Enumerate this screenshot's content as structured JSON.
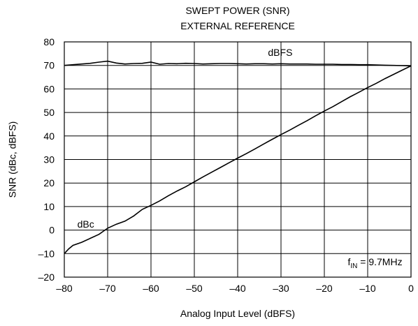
{
  "chart_data": {
    "type": "line",
    "title_lines": [
      "SWEPT POWER (SNR)",
      "EXTERNAL REFERENCE"
    ],
    "xlabel": "Analog Input Level (dBFS)",
    "ylabel": "SNR (dBc, dBFS)",
    "xlim": [
      -80,
      0
    ],
    "ylim": [
      -20,
      80
    ],
    "x_ticks": [
      -80,
      -70,
      -60,
      -50,
      -40,
      -30,
      -20,
      -10,
      0
    ],
    "x_tick_labels": [
      "–80",
      "–70",
      "–60",
      "–50",
      "–40",
      "–30",
      "–20",
      "–10",
      "0"
    ],
    "y_ticks": [
      80,
      70,
      60,
      50,
      40,
      30,
      20,
      10,
      0,
      -10,
      -20
    ],
    "y_tick_labels": [
      "80",
      "70",
      "60",
      "50",
      "40",
      "30",
      "20",
      "10",
      "0",
      "–10",
      "–20"
    ],
    "grid": true,
    "annotation": {
      "main": "f",
      "sub": "IN",
      "rest": " = 9.7MHz",
      "x": -2,
      "y": -15
    },
    "series": [
      {
        "name": "dBFS",
        "label_at": {
          "x": -33,
          "y": 74
        },
        "x": [
          -80,
          -78,
          -76,
          -74,
          -72,
          -70,
          -68,
          -66,
          -64,
          -62,
          -60,
          -58,
          -56,
          -54,
          -52,
          -50,
          -48,
          -46,
          -44,
          -42,
          -40,
          -38,
          -36,
          -34,
          -32,
          -30,
          -28,
          -26,
          -24,
          -22,
          -20,
          -18,
          -16,
          -14,
          -12,
          -10,
          -8,
          -6,
          -4,
          -2,
          0
        ],
        "values": [
          70.0,
          70.3,
          70.6,
          70.9,
          71.4,
          71.8,
          71.0,
          70.6,
          70.8,
          70.9,
          71.4,
          70.5,
          70.8,
          70.7,
          70.9,
          70.8,
          70.6,
          70.7,
          70.8,
          70.8,
          70.7,
          70.6,
          70.7,
          70.7,
          70.6,
          70.7,
          70.6,
          70.6,
          70.6,
          70.5,
          70.5,
          70.5,
          70.4,
          70.4,
          70.3,
          70.3,
          70.2,
          70.1,
          70.0,
          69.9,
          69.8
        ]
      },
      {
        "name": "dBc",
        "label_at": {
          "x": -77,
          "y": 1
        },
        "x": [
          -80,
          -79,
          -78,
          -76,
          -74,
          -72,
          -70,
          -68,
          -66,
          -64,
          -62,
          -60,
          -58,
          -56,
          -54,
          -52,
          -50,
          -48,
          -46,
          -44,
          -42,
          -40,
          -38,
          -36,
          -34,
          -32,
          -30,
          -28,
          -26,
          -24,
          -22,
          -20,
          -18,
          -16,
          -14,
          -12,
          -10,
          -8,
          -6,
          -4,
          -2,
          0
        ],
        "values": [
          -10.0,
          -8.0,
          -6.5,
          -5.2,
          -3.5,
          -1.8,
          0.8,
          2.5,
          3.8,
          6.0,
          8.8,
          10.5,
          12.4,
          14.6,
          16.6,
          18.4,
          20.5,
          22.6,
          24.6,
          26.6,
          28.6,
          30.6,
          32.5,
          34.5,
          36.6,
          38.6,
          40.6,
          42.5,
          44.5,
          46.5,
          48.6,
          50.6,
          52.5,
          54.6,
          56.7,
          58.6,
          60.6,
          62.4,
          64.4,
          66.2,
          68.0,
          69.8
        ]
      }
    ]
  }
}
